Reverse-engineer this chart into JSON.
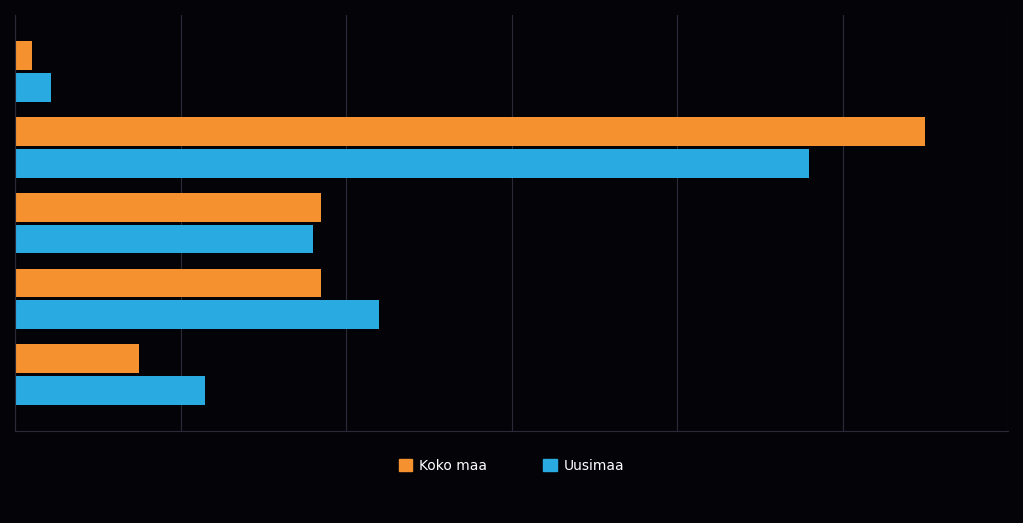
{
  "categories": [
    "",
    "",
    "",
    "",
    ""
  ],
  "orange_values": [
    7.5,
    18.5,
    18.5,
    55.0,
    1.0
  ],
  "blue_values": [
    11.5,
    22.0,
    18.0,
    48.0,
    2.2
  ],
  "orange_color": "#F5922F",
  "blue_color": "#29ABE2",
  "background_color": "#040408",
  "bar_height": 0.38,
  "legend_orange": "Koko maa",
  "legend_blue": "Uusimaa",
  "xlim": [
    0,
    60
  ],
  "xtick_values": [
    0,
    10,
    20,
    30,
    40,
    50,
    60
  ],
  "grid_color": "#2a2a3a",
  "text_color": "#ffffff",
  "tick_fontsize": 10,
  "legend_fontsize": 10,
  "bar_gap": 0.04
}
